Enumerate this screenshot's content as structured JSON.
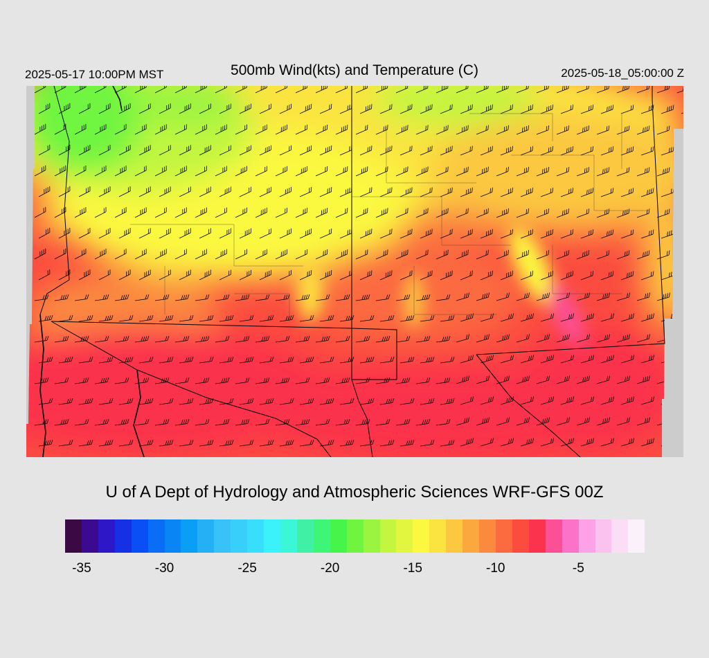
{
  "header": {
    "valid_local": "2025-05-17 10:00PM MST",
    "title": "500mb Wind(kts) and Temperature (C)",
    "valid_utc": "2025-05-18_05:00:00 Z"
  },
  "credit": "U of A Dept of Hydrology and Atmospheric Sciences WRF-GFS 00Z",
  "colorbar": {
    "colors": [
      "#3b0a45",
      "#3a0a90",
      "#2c18c6",
      "#1630e6",
      "#0a4ff5",
      "#0a6df5",
      "#0a85f5",
      "#0a9ef5",
      "#25aff5",
      "#38c2f7",
      "#38d0fa",
      "#38dffc",
      "#3cf2fa",
      "#3cf6d8",
      "#3ff0a5",
      "#3ff575",
      "#47f54a",
      "#6ff53f",
      "#9bf43f",
      "#c2f63f",
      "#e3f63f",
      "#fbf83f",
      "#fbe43f",
      "#fbc83f",
      "#fba83f",
      "#fb8a3f",
      "#fb6b3f",
      "#fb4c3f",
      "#fb334c",
      "#fb5095",
      "#fb72c8",
      "#fba2e8",
      "#fbc2ef",
      "#fbddf5",
      "#fbf1fb"
    ],
    "tick_labels": [
      "-35",
      "-30",
      "-25",
      "-20",
      "-15",
      "-10",
      "-5"
    ]
  },
  "map": {
    "field": "500mb temperature (C)",
    "colors": {
      "land_missing": "#cccccc",
      "background": "#e5e5e5"
    }
  }
}
